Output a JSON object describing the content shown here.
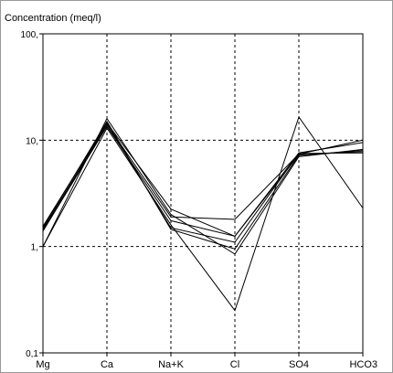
{
  "chart_data": {
    "type": "line",
    "title": "Concentration (meq/l)",
    "yscale": "log",
    "ylim": [
      0.1,
      100
    ],
    "y_ticks": [
      {
        "value": 0.1,
        "label": "0,1"
      },
      {
        "value": 1,
        "label": "1,"
      },
      {
        "value": 10,
        "label": "10,"
      },
      {
        "value": 100,
        "label": "100,"
      }
    ],
    "categories": [
      "Mg",
      "Ca",
      "Na+K",
      "Cl",
      "SO4",
      "HCO3"
    ],
    "grid": true,
    "series": [
      {
        "values": [
          1.45,
          14.2,
          1.5,
          1.1,
          7.5,
          7.6
        ]
      },
      {
        "values": [
          1.4,
          13.5,
          1.75,
          1.25,
          7.3,
          7.8
        ]
      },
      {
        "values": [
          1.5,
          15.0,
          1.45,
          0.95,
          7.2,
          8.0
        ]
      },
      {
        "values": [
          1.0,
          13.0,
          1.6,
          0.25,
          16.5,
          2.3
        ]
      },
      {
        "values": [
          1.0,
          16.0,
          2.0,
          0.85,
          7.0,
          8.2
        ]
      },
      {
        "values": [
          1.55,
          14.5,
          2.25,
          1.25,
          7.6,
          9.5
        ]
      },
      {
        "values": [
          1.4,
          14.0,
          1.9,
          1.8,
          7.4,
          10.0
        ]
      }
    ]
  }
}
